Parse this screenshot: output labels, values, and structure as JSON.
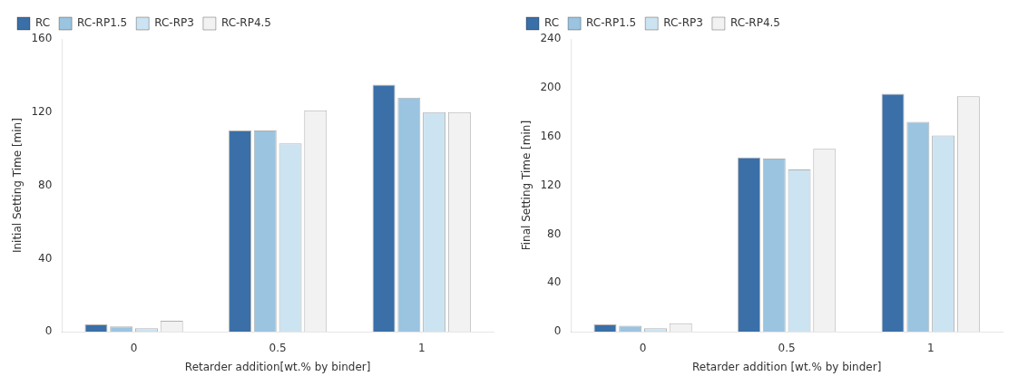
{
  "chart_data": [
    {
      "type": "bar",
      "xlabel": "Retarder addition[wt.% by binder]",
      "ylabel": "Initial Setting Time [min]",
      "categories": [
        "0",
        "0.5",
        "1"
      ],
      "series": [
        {
          "name": "RC",
          "color": "#3a6fa8",
          "values": [
            4,
            110,
            135
          ]
        },
        {
          "name": "RC-RP1.5",
          "color": "#9ac4e0",
          "values": [
            3,
            110,
            128
          ]
        },
        {
          "name": "RC-RP3",
          "color": "#cce3f2",
          "values": [
            2,
            103,
            120
          ]
        },
        {
          "name": "RC-RP4.5",
          "color": "#f2f2f2",
          "values": [
            6,
            121,
            120
          ]
        }
      ],
      "ylim": [
        0,
        160
      ],
      "yticks": [
        0,
        40,
        80,
        120,
        160
      ],
      "grid": false,
      "legend": "upper left"
    },
    {
      "type": "bar",
      "xlabel": "Retarder addition [wt.% by binder]",
      "ylabel": "Final Setting Time [min]",
      "categories": [
        "0",
        "0.5",
        "1"
      ],
      "series": [
        {
          "name": "RC",
          "color": "#3a6fa8",
          "values": [
            6,
            143,
            195
          ]
        },
        {
          "name": "RC-RP1.5",
          "color": "#9ac4e0",
          "values": [
            5,
            142,
            172
          ]
        },
        {
          "name": "RC-RP3",
          "color": "#cce3f2",
          "values": [
            3,
            133,
            161
          ]
        },
        {
          "name": "RC-RP4.5",
          "color": "#f2f2f2",
          "values": [
            7,
            150,
            193
          ]
        }
      ],
      "ylim": [
        0,
        240
      ],
      "yticks": [
        0,
        40,
        80,
        120,
        160,
        200,
        240
      ],
      "grid": false,
      "legend": "upper left"
    }
  ]
}
